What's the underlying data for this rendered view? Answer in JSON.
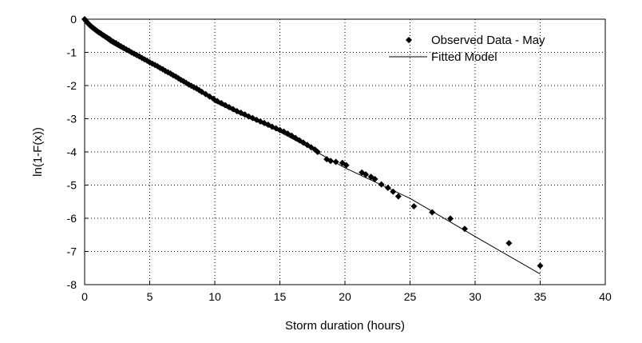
{
  "chart_data": {
    "type": "scatter",
    "xlabel": "Storm duration (hours)",
    "ylabel": "ln(1-F(x))",
    "xlim": [
      0,
      40
    ],
    "ylim": [
      -8,
      0
    ],
    "xticks": [
      0,
      5,
      10,
      15,
      20,
      25,
      30,
      35,
      40
    ],
    "yticks": [
      0,
      -1,
      -2,
      -3,
      -4,
      -5,
      -6,
      -7,
      -8
    ],
    "grid": true,
    "grid_style": "dotted",
    "legend_position": "top-right",
    "legend": [
      "Observed Data - May",
      "Fitted Model"
    ],
    "series": [
      {
        "name": "Observed Data - May",
        "kind": "scatter",
        "marker": "diamond",
        "color": "#000000",
        "points": [
          [
            0.0,
            0.0
          ],
          [
            0.1,
            -0.05
          ],
          [
            0.2,
            -0.1
          ],
          [
            0.3,
            -0.14
          ],
          [
            0.4,
            -0.18
          ],
          [
            0.5,
            -0.22
          ],
          [
            0.6,
            -0.25
          ],
          [
            0.7,
            -0.28
          ],
          [
            0.8,
            -0.31
          ],
          [
            0.9,
            -0.34
          ],
          [
            1.0,
            -0.37
          ],
          [
            1.1,
            -0.4
          ],
          [
            1.2,
            -0.42
          ],
          [
            1.3,
            -0.45
          ],
          [
            1.4,
            -0.48
          ],
          [
            1.5,
            -0.5
          ],
          [
            1.6,
            -0.53
          ],
          [
            1.7,
            -0.55
          ],
          [
            1.8,
            -0.58
          ],
          [
            1.9,
            -0.6
          ],
          [
            2.0,
            -0.63
          ],
          [
            2.2,
            -0.68
          ],
          [
            2.4,
            -0.72
          ],
          [
            2.6,
            -0.77
          ],
          [
            2.8,
            -0.82
          ],
          [
            3.0,
            -0.86
          ],
          [
            3.2,
            -0.91
          ],
          [
            3.4,
            -0.95
          ],
          [
            3.6,
            -1.0
          ],
          [
            3.8,
            -1.04
          ],
          [
            4.0,
            -1.08
          ],
          [
            4.2,
            -1.12
          ],
          [
            4.4,
            -1.17
          ],
          [
            4.6,
            -1.21
          ],
          [
            4.8,
            -1.25
          ],
          [
            5.0,
            -1.3
          ],
          [
            5.2,
            -1.34
          ],
          [
            5.4,
            -1.38
          ],
          [
            5.6,
            -1.42
          ],
          [
            5.8,
            -1.47
          ],
          [
            6.0,
            -1.51
          ],
          [
            6.2,
            -1.56
          ],
          [
            6.4,
            -1.6
          ],
          [
            6.6,
            -1.64
          ],
          [
            6.8,
            -1.69
          ],
          [
            7.0,
            -1.73
          ],
          [
            7.2,
            -1.78
          ],
          [
            7.4,
            -1.83
          ],
          [
            7.6,
            -1.87
          ],
          [
            7.8,
            -1.92
          ],
          [
            8.0,
            -1.97
          ],
          [
            8.2,
            -2.01
          ],
          [
            8.4,
            -2.05
          ],
          [
            8.6,
            -2.09
          ],
          [
            8.8,
            -2.14
          ],
          [
            9.0,
            -2.19
          ],
          [
            9.3,
            -2.26
          ],
          [
            9.6,
            -2.33
          ],
          [
            9.9,
            -2.4
          ],
          [
            10.2,
            -2.47
          ],
          [
            10.5,
            -2.53
          ],
          [
            10.8,
            -2.59
          ],
          [
            11.1,
            -2.65
          ],
          [
            11.4,
            -2.71
          ],
          [
            11.7,
            -2.77
          ],
          [
            12.0,
            -2.82
          ],
          [
            12.3,
            -2.87
          ],
          [
            12.6,
            -2.93
          ],
          [
            12.9,
            -2.98
          ],
          [
            13.2,
            -3.03
          ],
          [
            13.5,
            -3.08
          ],
          [
            13.8,
            -3.13
          ],
          [
            14.1,
            -3.18
          ],
          [
            14.4,
            -3.24
          ],
          [
            14.7,
            -3.29
          ],
          [
            15.0,
            -3.34
          ],
          [
            15.3,
            -3.39
          ],
          [
            15.6,
            -3.45
          ],
          [
            15.9,
            -3.51
          ],
          [
            16.2,
            -3.58
          ],
          [
            16.5,
            -3.65
          ],
          [
            16.8,
            -3.72
          ],
          [
            17.1,
            -3.79
          ],
          [
            17.4,
            -3.86
          ],
          [
            17.7,
            -3.93
          ],
          [
            17.9,
            -4.0
          ],
          [
            18.6,
            -4.22
          ],
          [
            18.9,
            -4.27
          ],
          [
            19.3,
            -4.3
          ],
          [
            19.8,
            -4.33
          ],
          [
            20.1,
            -4.4
          ],
          [
            21.3,
            -4.62
          ],
          [
            21.6,
            -4.68
          ],
          [
            22.0,
            -4.75
          ],
          [
            22.3,
            -4.82
          ],
          [
            22.8,
            -4.98
          ],
          [
            23.3,
            -5.08
          ],
          [
            23.7,
            -5.2
          ],
          [
            24.1,
            -5.34
          ],
          [
            25.3,
            -5.64
          ],
          [
            26.7,
            -5.82
          ],
          [
            28.1,
            -6.01
          ],
          [
            29.2,
            -6.32
          ],
          [
            32.6,
            -6.75
          ],
          [
            35.0,
            -7.43
          ]
        ]
      },
      {
        "name": "Fitted Model",
        "kind": "line",
        "color": "#000000",
        "points": [
          [
            0,
            0
          ],
          [
            1,
            -0.42
          ],
          [
            2,
            -0.72
          ],
          [
            3,
            -0.94
          ],
          [
            4,
            -1.14
          ],
          [
            5,
            -1.34
          ],
          [
            6,
            -1.54
          ],
          [
            7,
            -1.74
          ],
          [
            8,
            -1.95
          ],
          [
            9,
            -2.17
          ],
          [
            10,
            -2.5
          ],
          [
            12,
            -2.88
          ],
          [
            14,
            -3.22
          ],
          [
            15,
            -3.4
          ],
          [
            17,
            -3.82
          ],
          [
            20,
            -4.48
          ],
          [
            25,
            -5.4
          ],
          [
            30,
            -6.55
          ],
          [
            35,
            -7.68
          ]
        ]
      }
    ]
  }
}
